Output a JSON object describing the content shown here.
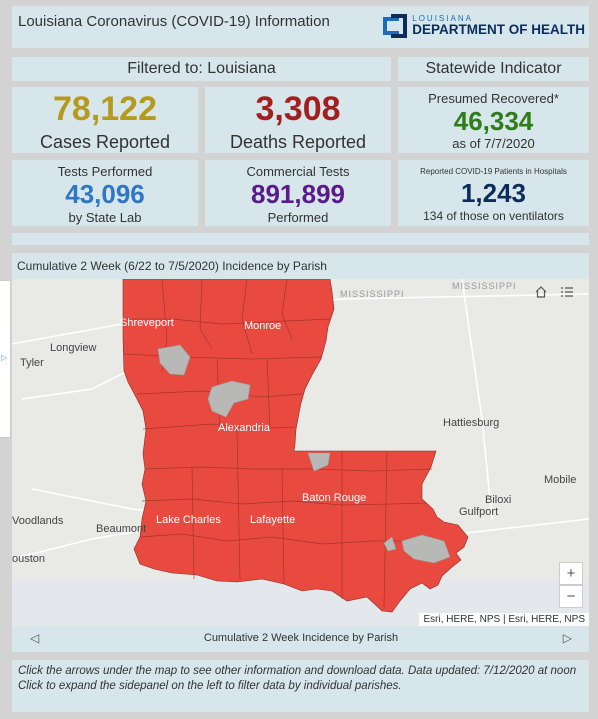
{
  "header": {
    "title": "Louisiana Coronavirus (COVID-19) Information",
    "logo_top": "LOUISIANA",
    "logo_main": "DEPARTMENT OF HEALTH"
  },
  "filter_label": "Filtered to: Louisiana",
  "statewide_label": "Statewide Indicator",
  "cases": {
    "value": "78,122",
    "label": "Cases Reported"
  },
  "deaths": {
    "value": "3,308",
    "label": "Deaths Reported"
  },
  "recovered": {
    "title": "Presumed Recovered*",
    "value": "46,334",
    "sub": "as of 7/7/2020"
  },
  "tests": {
    "title": "Tests Performed",
    "value": "43,096",
    "sub": "by State Lab"
  },
  "commercial": {
    "title": "Commercial Tests",
    "value": "891,899",
    "sub": "Performed"
  },
  "hospital": {
    "title": "Reported COVID-19 Patients in Hospitals",
    "value": "1,243",
    "sub": "134 of those on ventilators"
  },
  "map": {
    "title": "Cumulative 2 Week (6/22 to 7/5/2020) Incidence by Parish",
    "labels": {
      "tyler": "Tyler",
      "longview": "Longview",
      "shreveport": "Shreveport",
      "monroe": "Monroe",
      "mississippi_state": "MISSISSIPPI",
      "mississippi_river": "MISSISSIPPI",
      "alexandria": "Alexandria",
      "hattiesburg": "Hattiesburg",
      "mobile": "Mobile",
      "baton_rouge": "Baton Rouge",
      "biloxi": "Biloxi",
      "gulfport": "Gulfport",
      "woodlands": "Voodlands",
      "beaumont": "Beaumont",
      "lake_charles": "Lake Charles",
      "lafayette": "Lafayette",
      "houston": "ouston"
    },
    "zoom_in": "+",
    "zoom_out": "−",
    "attribution": "Esri, HERE, NPS | Esri, HERE, NPS",
    "nav_label": "Cumulative 2 Week Incidence by Parish",
    "prev": "◁",
    "next": "▷",
    "side_arrow": "▷"
  },
  "footer": {
    "line1": "Click the arrows under the map to see other information and download data. Data updated: 7/12/2020 at noon",
    "line2": "Click to expand the sidepanel on the left to filter data by individual parishes."
  },
  "colors": {
    "cases": "#b59a1e",
    "deaths": "#a31f1f",
    "recovered": "#2e7d1a",
    "tests": "#2f76c4",
    "commercial": "#5b1a8a",
    "hospital": "#0a2d5c",
    "parish_fill": "#e84a40"
  }
}
